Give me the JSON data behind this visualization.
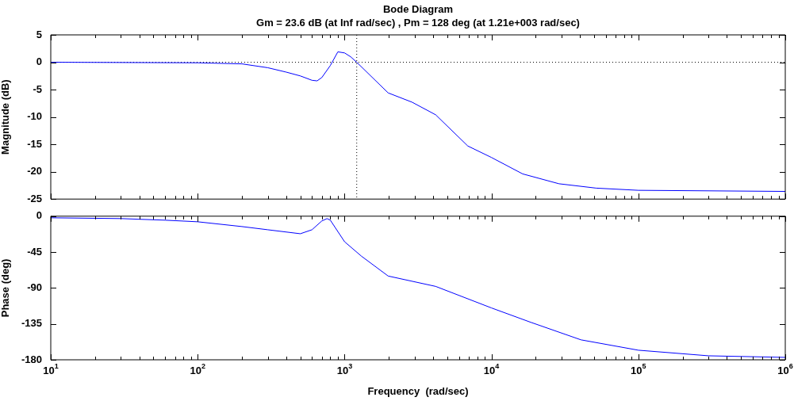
{
  "chart_data": [
    {
      "type": "line",
      "title": "Bode Diagram",
      "subtitle": "Gm = 23.6 dB (at Inf rad/sec) ,  Pm = 128 deg (at 1.21e+003 rad/sec)",
      "ylabel": "Magnitude (dB)",
      "log": "x",
      "xlim": [
        10,
        1000000
      ],
      "ylim": [
        -25,
        5
      ],
      "yticks": [
        5,
        0,
        -5,
        -10,
        -15,
        -20,
        -25
      ],
      "xticks": [
        {
          "value": 10,
          "label": null
        },
        {
          "value": 20,
          "label": null
        },
        {
          "value": 30,
          "label": null
        },
        {
          "value": 40,
          "label": null
        },
        {
          "value": 50,
          "label": null
        },
        {
          "value": 60,
          "label": null
        },
        {
          "value": 70,
          "label": null
        },
        {
          "value": 80,
          "label": null
        },
        {
          "value": 90,
          "label": null
        },
        {
          "value": 100,
          "label": null
        },
        {
          "value": 200,
          "label": null
        },
        {
          "value": 300,
          "label": null
        },
        {
          "value": 400,
          "label": null
        },
        {
          "value": 500,
          "label": null
        },
        {
          "value": 600,
          "label": null
        },
        {
          "value": 700,
          "label": null
        },
        {
          "value": 800,
          "label": null
        },
        {
          "value": 900,
          "label": null
        },
        {
          "value": 1000,
          "label": null
        },
        {
          "value": 2000,
          "label": null
        },
        {
          "value": 3000,
          "label": null
        },
        {
          "value": 4000,
          "label": null
        },
        {
          "value": 5000,
          "label": null
        },
        {
          "value": 6000,
          "label": null
        },
        {
          "value": 7000,
          "label": null
        },
        {
          "value": 8000,
          "label": null
        },
        {
          "value": 9000,
          "label": null
        },
        {
          "value": 10000,
          "label": null
        },
        {
          "value": 20000,
          "label": null
        },
        {
          "value": 30000,
          "label": null
        },
        {
          "value": 40000,
          "label": null
        },
        {
          "value": 50000,
          "label": null
        },
        {
          "value": 60000,
          "label": null
        },
        {
          "value": 70000,
          "label": null
        },
        {
          "value": 80000,
          "label": null
        },
        {
          "value": 90000,
          "label": null
        },
        {
          "value": 100000,
          "label": null
        },
        {
          "value": 200000,
          "label": null
        },
        {
          "value": 300000,
          "label": null
        },
        {
          "value": 400000,
          "label": null
        },
        {
          "value": 500000,
          "label": null
        },
        {
          "value": 600000,
          "label": null
        },
        {
          "value": 700000,
          "label": null
        },
        {
          "value": 800000,
          "label": null
        },
        {
          "value": 900000,
          "label": null
        },
        {
          "value": 1000000,
          "label": null
        }
      ],
      "tick_labels": "y",
      "marker": "none",
      "line_style": "solid",
      "ref_lines": [
        {
          "axis": "y",
          "value": 0,
          "color": "#000000",
          "line_style": "dotted"
        },
        {
          "axis": "x",
          "value": 1210,
          "color": "#000000",
          "line_style": "dotted"
        }
      ],
      "series": [
        {
          "color": "#0000ff",
          "x": [
            10,
            100,
            200,
            300,
            400,
            500,
            600,
            650,
            700,
            800,
            900,
            1000,
            1100,
            1210,
            1980,
            2880,
            4170,
            6900,
            10000,
            16300,
            28800,
            51600,
            100000,
            1000000
          ],
          "values": [
            0,
            -0.1,
            -0.3,
            -1.0,
            -1.8,
            -2.5,
            -3.3,
            -3.4,
            -2.8,
            -0.6,
            1.9,
            1.7,
            1.0,
            0,
            -5.6,
            -7.3,
            -9.6,
            -15.3,
            -17.4,
            -20.4,
            -22.2,
            -23.0,
            -23.4,
            -23.6
          ]
        }
      ]
    },
    {
      "type": "line",
      "xlabel": "Frequency  (rad/sec)",
      "ylabel": "Phase (deg)",
      "log": "x",
      "xlim": [
        10,
        1000000
      ],
      "ylim": [
        -180,
        0
      ],
      "yticks": [
        0,
        -45,
        -90,
        -135,
        -180
      ],
      "xticks": [
        {
          "value": 10,
          "label": "10$^{1}$"
        },
        {
          "value": 20,
          "label": null
        },
        {
          "value": 30,
          "label": null
        },
        {
          "value": 40,
          "label": null
        },
        {
          "value": 50,
          "label": null
        },
        {
          "value": 60,
          "label": null
        },
        {
          "value": 70,
          "label": null
        },
        {
          "value": 80,
          "label": null
        },
        {
          "value": 90,
          "label": null
        },
        {
          "value": 100,
          "label": "10$^{2}$"
        },
        {
          "value": 200,
          "label": null
        },
        {
          "value": 300,
          "label": null
        },
        {
          "value": 400,
          "label": null
        },
        {
          "value": 500,
          "label": null
        },
        {
          "value": 600,
          "label": null
        },
        {
          "value": 700,
          "label": null
        },
        {
          "value": 800,
          "label": null
        },
        {
          "value": 900,
          "label": null
        },
        {
          "value": 1000,
          "label": "10$^{3}$"
        },
        {
          "value": 2000,
          "label": null
        },
        {
          "value": 3000,
          "label": null
        },
        {
          "value": 4000,
          "label": null
        },
        {
          "value": 5000,
          "label": null
        },
        {
          "value": 6000,
          "label": null
        },
        {
          "value": 7000,
          "label": null
        },
        {
          "value": 8000,
          "label": null
        },
        {
          "value": 9000,
          "label": null
        },
        {
          "value": 10000,
          "label": "10$^{4}$"
        },
        {
          "value": 20000,
          "label": null
        },
        {
          "value": 30000,
          "label": null
        },
        {
          "value": 40000,
          "label": null
        },
        {
          "value": 50000,
          "label": null
        },
        {
          "value": 60000,
          "label": null
        },
        {
          "value": 70000,
          "label": null
        },
        {
          "value": 80000,
          "label": null
        },
        {
          "value": 90000,
          "label": null
        },
        {
          "value": 100000,
          "label": "10$^{5}$"
        },
        {
          "value": 200000,
          "label": null
        },
        {
          "value": 300000,
          "label": null
        },
        {
          "value": 400000,
          "label": null
        },
        {
          "value": 500000,
          "label": null
        },
        {
          "value": 600000,
          "label": null
        },
        {
          "value": 700000,
          "label": null
        },
        {
          "value": 800000,
          "label": null
        },
        {
          "value": 900000,
          "label": null
        },
        {
          "value": 1000000,
          "label": "10$^{6}$"
        }
      ],
      "marker": "none",
      "line_style": "solid",
      "series": [
        {
          "color": "#0000ff",
          "x": [
            10,
            30,
            60,
            100,
            200,
            300,
            500,
            600,
            700,
            760,
            800,
            1000,
            1300,
            1980,
            4170,
            10000,
            18500,
            40700,
            100000,
            300000,
            1000000
          ],
          "values": [
            -2,
            -3,
            -5,
            -7,
            -13,
            -17,
            -22,
            -17,
            -6,
            -3,
            -5,
            -32,
            -50,
            -75,
            -88,
            -115,
            -133,
            -155,
            -168,
            -175,
            -177
          ]
        }
      ]
    }
  ]
}
